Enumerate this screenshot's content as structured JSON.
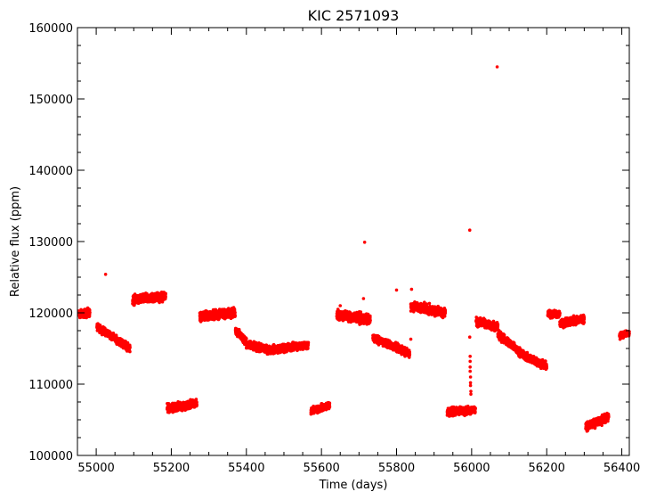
{
  "chart_data": {
    "type": "scatter",
    "title": "KIC 2571093",
    "xlabel": "Time (days)",
    "ylabel": "Relative flux (ppm)",
    "xlim": [
      54950,
      56420
    ],
    "ylim": [
      100000,
      160000
    ],
    "x_ticks": [
      55000,
      55200,
      55400,
      55600,
      55800,
      56000,
      56200,
      56400
    ],
    "y_ticks": [
      100000,
      110000,
      120000,
      130000,
      140000,
      150000,
      160000
    ],
    "grid": false,
    "marker_color": "#ff0000",
    "segments": [
      {
        "x_start": 54953,
        "x_end": 54983,
        "y_start": 119800,
        "y_end": 120000,
        "noise": 800
      },
      {
        "x_start": 55002,
        "x_end": 55035,
        "y_start": 118000,
        "y_end": 117000,
        "noise": 700
      },
      {
        "x_start": 55036,
        "x_end": 55060,
        "y_start": 117000,
        "y_end": 116000,
        "noise": 700
      },
      {
        "x_start": 55062,
        "x_end": 55090,
        "y_start": 116000,
        "y_end": 115000,
        "noise": 800
      },
      {
        "x_start": 55097,
        "x_end": 55185,
        "y_start": 121800,
        "y_end": 122300,
        "noise": 900
      },
      {
        "x_start": 55189,
        "x_end": 55268,
        "y_start": 106600,
        "y_end": 107300,
        "noise": 800
      },
      {
        "x_start": 55276,
        "x_end": 55370,
        "y_start": 119500,
        "y_end": 120000,
        "noise": 900
      },
      {
        "x_start": 55371,
        "x_end": 55400,
        "y_start": 117500,
        "y_end": 116000,
        "noise": 800
      },
      {
        "x_start": 55400,
        "x_end": 55460,
        "y_start": 115500,
        "y_end": 114800,
        "noise": 800
      },
      {
        "x_start": 55460,
        "x_end": 55565,
        "y_start": 114800,
        "y_end": 115500,
        "noise": 800
      },
      {
        "x_start": 55572,
        "x_end": 55622,
        "y_start": 106200,
        "y_end": 107000,
        "noise": 700
      },
      {
        "x_start": 55641,
        "x_end": 55730,
        "y_start": 119800,
        "y_end": 119000,
        "noise": 1000
      },
      {
        "x_start": 55737,
        "x_end": 55770,
        "y_start": 116500,
        "y_end": 115800,
        "noise": 700
      },
      {
        "x_start": 55770,
        "x_end": 55835,
        "y_start": 115800,
        "y_end": 114300,
        "noise": 800
      },
      {
        "x_start": 55838,
        "x_end": 55930,
        "y_start": 121000,
        "y_end": 120000,
        "noise": 900
      },
      {
        "x_start": 55935,
        "x_end": 56010,
        "y_start": 106100,
        "y_end": 106400,
        "noise": 800
      },
      {
        "x_start": 56012,
        "x_end": 56070,
        "y_start": 118800,
        "y_end": 118000,
        "noise": 800
      },
      {
        "x_start": 56070,
        "x_end": 56140,
        "y_start": 117000,
        "y_end": 114000,
        "noise": 800
      },
      {
        "x_start": 56140,
        "x_end": 56200,
        "y_start": 114000,
        "y_end": 112500,
        "noise": 800
      },
      {
        "x_start": 56203,
        "x_end": 56235,
        "y_start": 119800,
        "y_end": 119800,
        "noise": 700
      },
      {
        "x_start": 56235,
        "x_end": 56300,
        "y_start": 118500,
        "y_end": 119200,
        "noise": 800
      },
      {
        "x_start": 56304,
        "x_end": 56365,
        "y_start": 104000,
        "y_end": 105400,
        "noise": 800
      },
      {
        "x_start": 56394,
        "x_end": 56420,
        "y_start": 116800,
        "y_end": 117200,
        "noise": 600
      }
    ],
    "outliers": [
      {
        "x": 55025,
        "y": 125400
      },
      {
        "x": 55715,
        "y": 129900
      },
      {
        "x": 55800,
        "y": 123200
      },
      {
        "x": 55838,
        "y": 116300
      },
      {
        "x": 55995,
        "y": 131600
      },
      {
        "x": 56068,
        "y": 154500
      },
      {
        "x": 55995,
        "y": 116600
      },
      {
        "x": 55996,
        "y": 113900
      },
      {
        "x": 55996,
        "y": 113200
      },
      {
        "x": 55996,
        "y": 112400
      },
      {
        "x": 55996,
        "y": 111800
      },
      {
        "x": 55997,
        "y": 111000
      },
      {
        "x": 55997,
        "y": 110200
      },
      {
        "x": 55997,
        "y": 109800
      },
      {
        "x": 55998,
        "y": 109000
      },
      {
        "x": 55998,
        "y": 108600
      },
      {
        "x": 55650,
        "y": 121000
      },
      {
        "x": 55712,
        "y": 122000
      },
      {
        "x": 55840,
        "y": 123300
      }
    ]
  }
}
